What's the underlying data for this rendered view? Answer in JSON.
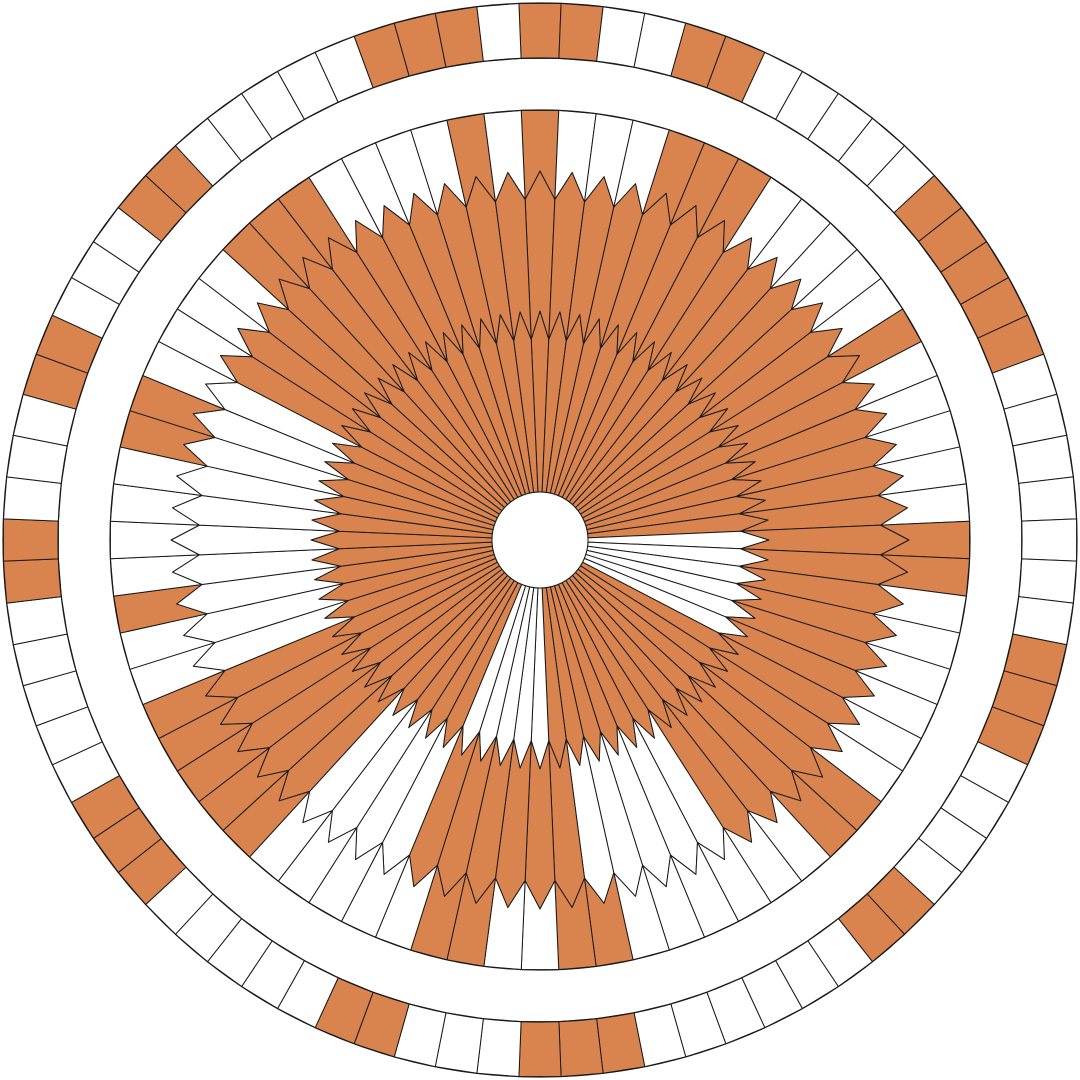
{
  "pattern": {
    "colors": {
      "accent": "#D9844F",
      "blank": "#FFFFFF",
      "outline": "#1A1A1A",
      "background": "#FFFFFF"
    },
    "outer_ring": {
      "tile_count": 80,
      "filled_tiles": [
        0,
        1,
        4,
        5,
        11,
        12,
        13,
        14,
        15,
        23,
        24,
        25,
        30,
        31,
        38,
        39,
        40,
        44,
        45,
        51,
        52,
        53,
        59,
        60,
        64,
        65,
        69,
        70,
        76,
        77,
        78
      ]
    },
    "inner_disc": {
      "spoke_count": 72,
      "bands": [
        {
          "name": "inner",
          "filled_spokes": [
            0,
            1,
            2,
            3,
            4,
            5,
            6,
            7,
            8,
            9,
            10,
            11,
            12,
            13,
            14,
            15,
            16,
            17,
            24,
            25,
            26,
            27,
            28,
            29,
            30,
            31,
            32,
            33,
            34,
            35,
            41,
            42,
            43,
            44,
            45,
            46,
            47,
            48,
            49,
            50,
            51,
            52,
            53,
            54,
            55,
            56,
            57,
            58,
            59,
            60,
            61,
            62,
            63,
            64,
            65,
            66,
            67,
            68,
            69,
            70,
            71
          ]
        },
        {
          "name": "middle",
          "filled_spokes": [
            0,
            1,
            2,
            3,
            4,
            5,
            6,
            7,
            8,
            9,
            10,
            11,
            12,
            13,
            14,
            15,
            16,
            17,
            18,
            19,
            20,
            21,
            22,
            23,
            24,
            25,
            26,
            27,
            28,
            29,
            35,
            36,
            37,
            38,
            39,
            40,
            45,
            46,
            47,
            48,
            49,
            60,
            61,
            62,
            63,
            64,
            65,
            66,
            67,
            68,
            69,
            70,
            71
          ]
        },
        {
          "name": "outer",
          "filled_spokes": [
            0,
            4,
            5,
            6,
            12,
            18,
            19,
            26,
            27,
            34,
            35,
            38,
            39,
            45,
            46,
            47,
            48,
            49,
            52,
            57,
            58,
            63,
            64,
            65,
            70
          ]
        }
      ]
    }
  }
}
